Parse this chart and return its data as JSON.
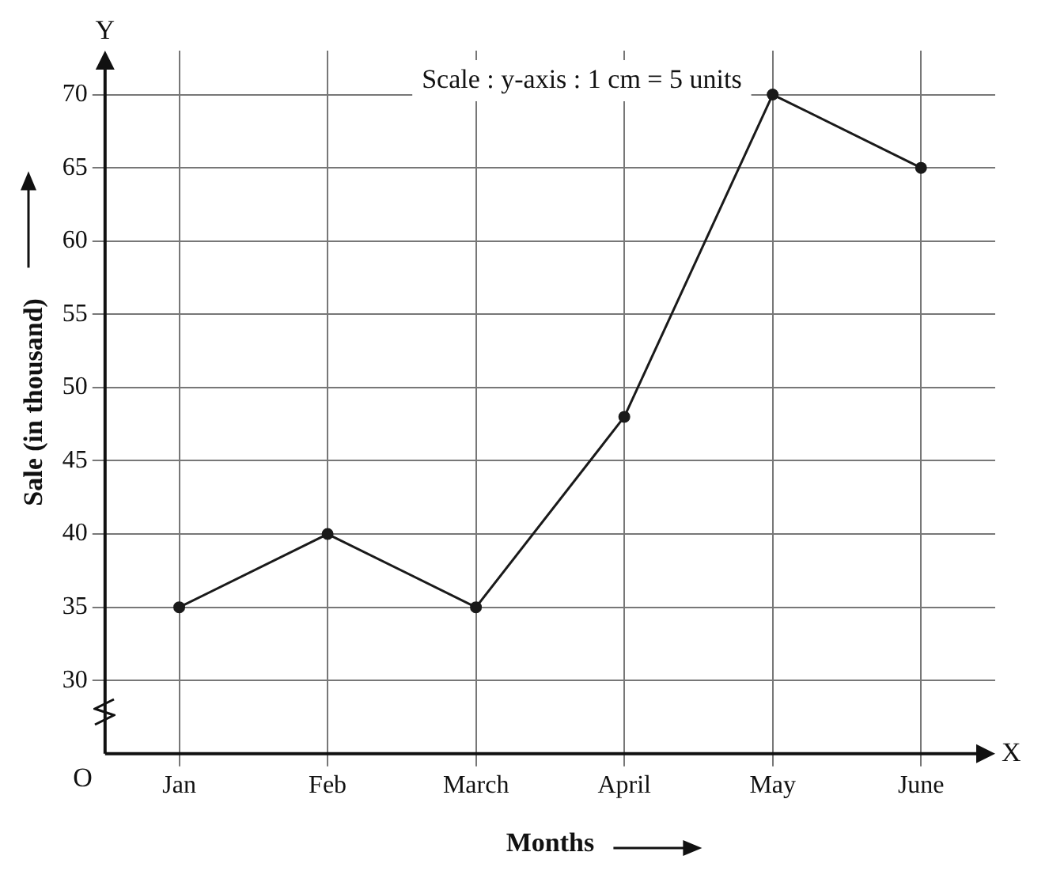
{
  "chart_data": {
    "type": "line",
    "xlabel": "Months",
    "ylabel": "Sale (in thousand)",
    "annotations": [
      "Scale : y-axis : 1 cm = 5 units",
      "Y",
      "X",
      "O"
    ],
    "categories": [
      "Jan",
      "Feb",
      "March",
      "April",
      "May",
      "June"
    ],
    "series": [
      {
        "color": "#1a1a1a",
        "values": [
          35,
          40,
          35,
          48,
          70,
          65
        ]
      }
    ],
    "ylim": [
      25,
      73
    ],
    "yticks": [
      30,
      35,
      40,
      45,
      50,
      55,
      60,
      65,
      70
    ],
    "grid": true,
    "marker": "circle",
    "line_style": "solid",
    "legend": false
  }
}
